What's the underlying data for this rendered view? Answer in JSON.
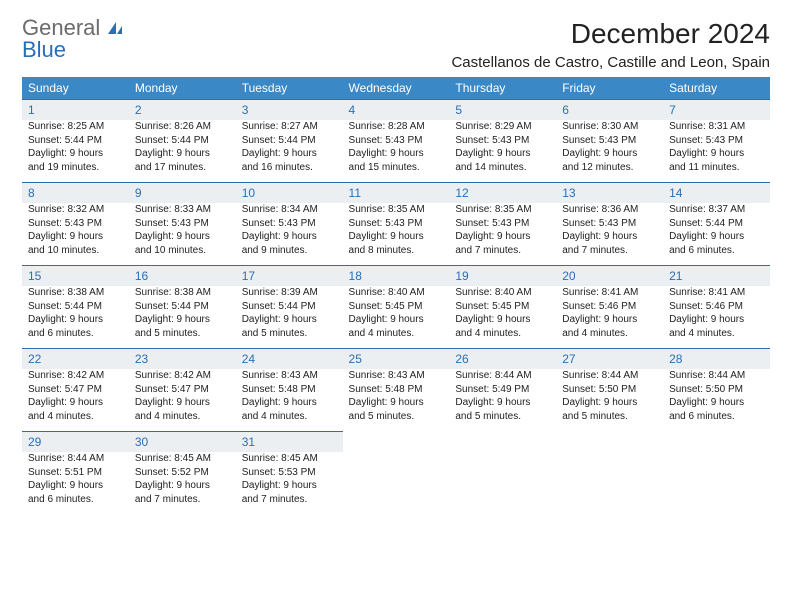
{
  "brand": {
    "part1": "General",
    "part2": "Blue"
  },
  "title": "December 2024",
  "location": "Castellanos de Castro, Castille and Leon, Spain",
  "colors": {
    "header_bg": "#3b88c6",
    "header_text": "#ffffff",
    "daynum_bg": "#eceff1",
    "daynum_border": "#2a6fb5",
    "daynum_text": "#2a6fb5",
    "body_text": "#222222",
    "logo_gray": "#6b6b6b",
    "logo_blue": "#2a6fb5"
  },
  "typography": {
    "title_fontsize": 28,
    "location_fontsize": 15,
    "dow_fontsize": 12,
    "daynum_fontsize": 12,
    "cell_fontsize": 10
  },
  "layout": {
    "columns": 7,
    "rows": 5
  },
  "dow": [
    "Sunday",
    "Monday",
    "Tuesday",
    "Wednesday",
    "Thursday",
    "Friday",
    "Saturday"
  ],
  "days": [
    {
      "n": "1",
      "sr": "Sunrise: 8:25 AM",
      "ss": "Sunset: 5:44 PM",
      "d1": "Daylight: 9 hours",
      "d2": "and 19 minutes."
    },
    {
      "n": "2",
      "sr": "Sunrise: 8:26 AM",
      "ss": "Sunset: 5:44 PM",
      "d1": "Daylight: 9 hours",
      "d2": "and 17 minutes."
    },
    {
      "n": "3",
      "sr": "Sunrise: 8:27 AM",
      "ss": "Sunset: 5:44 PM",
      "d1": "Daylight: 9 hours",
      "d2": "and 16 minutes."
    },
    {
      "n": "4",
      "sr": "Sunrise: 8:28 AM",
      "ss": "Sunset: 5:43 PM",
      "d1": "Daylight: 9 hours",
      "d2": "and 15 minutes."
    },
    {
      "n": "5",
      "sr": "Sunrise: 8:29 AM",
      "ss": "Sunset: 5:43 PM",
      "d1": "Daylight: 9 hours",
      "d2": "and 14 minutes."
    },
    {
      "n": "6",
      "sr": "Sunrise: 8:30 AM",
      "ss": "Sunset: 5:43 PM",
      "d1": "Daylight: 9 hours",
      "d2": "and 12 minutes."
    },
    {
      "n": "7",
      "sr": "Sunrise: 8:31 AM",
      "ss": "Sunset: 5:43 PM",
      "d1": "Daylight: 9 hours",
      "d2": "and 11 minutes."
    },
    {
      "n": "8",
      "sr": "Sunrise: 8:32 AM",
      "ss": "Sunset: 5:43 PM",
      "d1": "Daylight: 9 hours",
      "d2": "and 10 minutes."
    },
    {
      "n": "9",
      "sr": "Sunrise: 8:33 AM",
      "ss": "Sunset: 5:43 PM",
      "d1": "Daylight: 9 hours",
      "d2": "and 10 minutes."
    },
    {
      "n": "10",
      "sr": "Sunrise: 8:34 AM",
      "ss": "Sunset: 5:43 PM",
      "d1": "Daylight: 9 hours",
      "d2": "and 9 minutes."
    },
    {
      "n": "11",
      "sr": "Sunrise: 8:35 AM",
      "ss": "Sunset: 5:43 PM",
      "d1": "Daylight: 9 hours",
      "d2": "and 8 minutes."
    },
    {
      "n": "12",
      "sr": "Sunrise: 8:35 AM",
      "ss": "Sunset: 5:43 PM",
      "d1": "Daylight: 9 hours",
      "d2": "and 7 minutes."
    },
    {
      "n": "13",
      "sr": "Sunrise: 8:36 AM",
      "ss": "Sunset: 5:43 PM",
      "d1": "Daylight: 9 hours",
      "d2": "and 7 minutes."
    },
    {
      "n": "14",
      "sr": "Sunrise: 8:37 AM",
      "ss": "Sunset: 5:44 PM",
      "d1": "Daylight: 9 hours",
      "d2": "and 6 minutes."
    },
    {
      "n": "15",
      "sr": "Sunrise: 8:38 AM",
      "ss": "Sunset: 5:44 PM",
      "d1": "Daylight: 9 hours",
      "d2": "and 6 minutes."
    },
    {
      "n": "16",
      "sr": "Sunrise: 8:38 AM",
      "ss": "Sunset: 5:44 PM",
      "d1": "Daylight: 9 hours",
      "d2": "and 5 minutes."
    },
    {
      "n": "17",
      "sr": "Sunrise: 8:39 AM",
      "ss": "Sunset: 5:44 PM",
      "d1": "Daylight: 9 hours",
      "d2": "and 5 minutes."
    },
    {
      "n": "18",
      "sr": "Sunrise: 8:40 AM",
      "ss": "Sunset: 5:45 PM",
      "d1": "Daylight: 9 hours",
      "d2": "and 4 minutes."
    },
    {
      "n": "19",
      "sr": "Sunrise: 8:40 AM",
      "ss": "Sunset: 5:45 PM",
      "d1": "Daylight: 9 hours",
      "d2": "and 4 minutes."
    },
    {
      "n": "20",
      "sr": "Sunrise: 8:41 AM",
      "ss": "Sunset: 5:46 PM",
      "d1": "Daylight: 9 hours",
      "d2": "and 4 minutes."
    },
    {
      "n": "21",
      "sr": "Sunrise: 8:41 AM",
      "ss": "Sunset: 5:46 PM",
      "d1": "Daylight: 9 hours",
      "d2": "and 4 minutes."
    },
    {
      "n": "22",
      "sr": "Sunrise: 8:42 AM",
      "ss": "Sunset: 5:47 PM",
      "d1": "Daylight: 9 hours",
      "d2": "and 4 minutes."
    },
    {
      "n": "23",
      "sr": "Sunrise: 8:42 AM",
      "ss": "Sunset: 5:47 PM",
      "d1": "Daylight: 9 hours",
      "d2": "and 4 minutes."
    },
    {
      "n": "24",
      "sr": "Sunrise: 8:43 AM",
      "ss": "Sunset: 5:48 PM",
      "d1": "Daylight: 9 hours",
      "d2": "and 4 minutes."
    },
    {
      "n": "25",
      "sr": "Sunrise: 8:43 AM",
      "ss": "Sunset: 5:48 PM",
      "d1": "Daylight: 9 hours",
      "d2": "and 5 minutes."
    },
    {
      "n": "26",
      "sr": "Sunrise: 8:44 AM",
      "ss": "Sunset: 5:49 PM",
      "d1": "Daylight: 9 hours",
      "d2": "and 5 minutes."
    },
    {
      "n": "27",
      "sr": "Sunrise: 8:44 AM",
      "ss": "Sunset: 5:50 PM",
      "d1": "Daylight: 9 hours",
      "d2": "and 5 minutes."
    },
    {
      "n": "28",
      "sr": "Sunrise: 8:44 AM",
      "ss": "Sunset: 5:50 PM",
      "d1": "Daylight: 9 hours",
      "d2": "and 6 minutes."
    },
    {
      "n": "29",
      "sr": "Sunrise: 8:44 AM",
      "ss": "Sunset: 5:51 PM",
      "d1": "Daylight: 9 hours",
      "d2": "and 6 minutes."
    },
    {
      "n": "30",
      "sr": "Sunrise: 8:45 AM",
      "ss": "Sunset: 5:52 PM",
      "d1": "Daylight: 9 hours",
      "d2": "and 7 minutes."
    },
    {
      "n": "31",
      "sr": "Sunrise: 8:45 AM",
      "ss": "Sunset: 5:53 PM",
      "d1": "Daylight: 9 hours",
      "d2": "and 7 minutes."
    }
  ]
}
